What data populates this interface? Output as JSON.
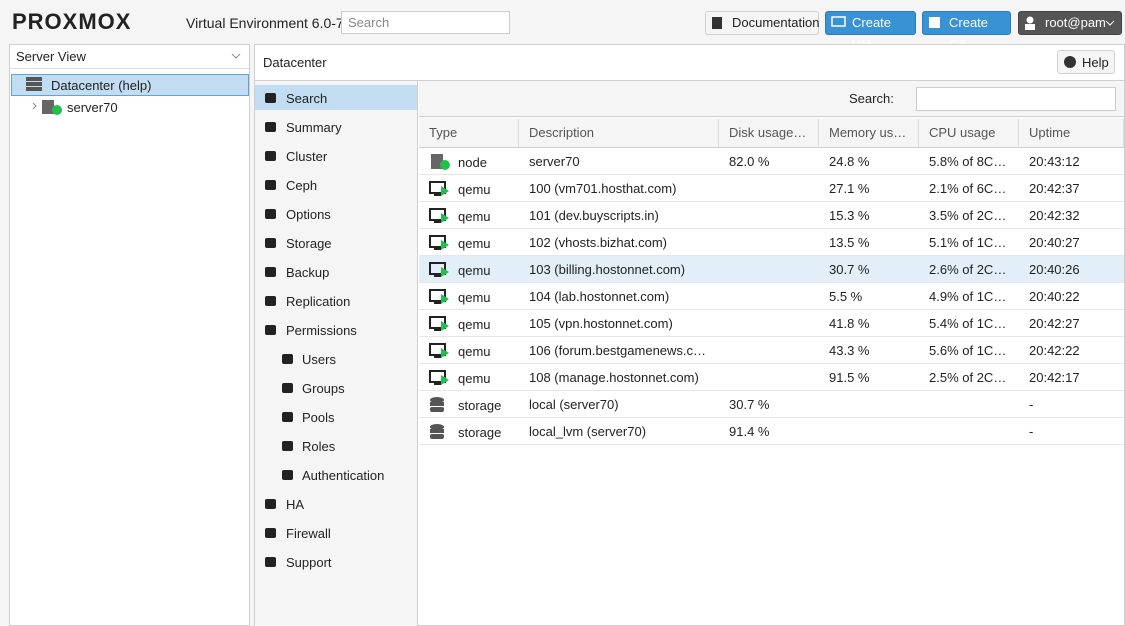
{
  "header": {
    "logo": "PROXMOX",
    "product": "Virtual Environment 6.0-7",
    "search_placeholder": "Search",
    "documentation": "Documentation",
    "create_vm": "Create VM",
    "create_ct": "Create CT",
    "user": "root@pam"
  },
  "tree": {
    "view": "Server View",
    "datacenter": "Datacenter (help)",
    "node": "server70"
  },
  "panel": {
    "title": "Datacenter",
    "help": "Help"
  },
  "menu": {
    "items": [
      "Search",
      "Summary",
      "Cluster",
      "Ceph",
      "Options",
      "Storage",
      "Backup",
      "Replication",
      "Permissions"
    ],
    "permissions_submenu": [
      "Users",
      "Groups",
      "Pools",
      "Roles",
      "Authentication"
    ],
    "more": [
      "HA",
      "Firewall",
      "Support"
    ]
  },
  "table": {
    "search_label": "Search:",
    "columns": [
      "Type",
      "Description",
      "Disk usage…",
      "Memory us…",
      "CPU usage",
      "Uptime"
    ],
    "rows": [
      [
        "node",
        "server70",
        "82.0 %",
        "24.8 %",
        "5.8% of 8C…",
        "20:43:12"
      ],
      [
        "qemu",
        "100 (vm701.hosthat.com)",
        null,
        "27.1 %",
        "2.1% of 6C…",
        "20:42:37"
      ],
      [
        "qemu",
        "101 (dev.buyscripts.in)",
        null,
        "15.3 %",
        "3.5% of 2C…",
        "20:42:32"
      ],
      [
        "qemu",
        "102 (vhosts.bizhat.com)",
        null,
        "13.5 %",
        "5.1% of 1C…",
        "20:40:27"
      ],
      [
        "qemu",
        "103 (billing.hostonnet.com)",
        null,
        "30.7 %",
        "2.6% of 2C…",
        "20:40:26"
      ],
      [
        "qemu",
        "104 (lab.hostonnet.com)",
        null,
        "5.5 %",
        "4.9% of 1C…",
        "20:40:22"
      ],
      [
        "qemu",
        "105 (vpn.hostonnet.com)",
        null,
        "41.8 %",
        "5.4% of 1C…",
        "20:42:27"
      ],
      [
        "qemu",
        "106 (forum.bestgamenews.c…",
        null,
        "43.3 %",
        "5.6% of 1C…",
        "20:42:22"
      ],
      [
        "qemu",
        "108 (manage.hostonnet.com)",
        null,
        "91.5 %",
        "2.5% of 2C…",
        "20:42:17"
      ],
      [
        "storage",
        "local (server70)",
        "30.7 %",
        null,
        null,
        "-"
      ],
      [
        "storage",
        "local_lvm (server70)",
        "91.4 %",
        null,
        null,
        "-"
      ]
    ]
  }
}
